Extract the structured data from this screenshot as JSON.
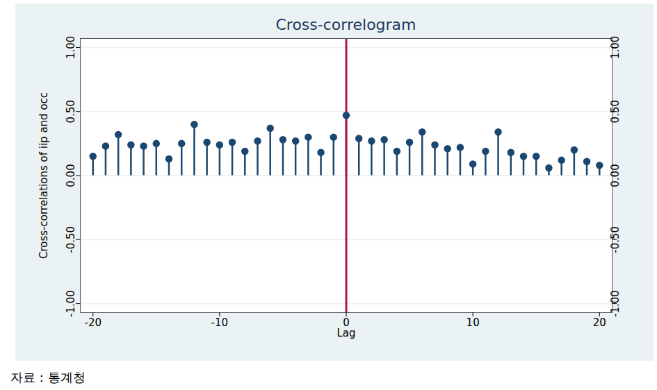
{
  "chart_data": {
    "type": "stem",
    "title": "Cross-correlogram",
    "x_label": "Lag",
    "y_label": "Cross-correlations of iip and occ",
    "source": "자료 : 통계청",
    "x": [
      -20,
      -19,
      -18,
      -17,
      -16,
      -15,
      -14,
      -13,
      -12,
      -11,
      -10,
      -9,
      -8,
      -7,
      -6,
      -5,
      -4,
      -3,
      -2,
      -1,
      0,
      1,
      2,
      3,
      4,
      5,
      6,
      7,
      8,
      9,
      10,
      11,
      12,
      13,
      14,
      15,
      16,
      17,
      18,
      19,
      20
    ],
    "values": [
      0.15,
      0.23,
      0.32,
      0.24,
      0.23,
      0.25,
      0.13,
      0.25,
      0.4,
      0.26,
      0.24,
      0.26,
      0.19,
      0.27,
      0.37,
      0.28,
      0.27,
      0.3,
      0.18,
      0.3,
      0.47,
      0.29,
      0.27,
      0.28,
      0.19,
      0.26,
      0.34,
      0.24,
      0.21,
      0.22,
      0.09,
      0.19,
      0.34,
      0.18,
      0.15,
      0.15,
      0.06,
      0.12,
      0.2,
      0.11,
      0.08
    ],
    "color": "#1a476f",
    "marker": "circle",
    "xlim": [
      -21,
      21
    ],
    "xticks": [
      -20,
      -10,
      0,
      10,
      20
    ],
    "ylim": [
      -1.07,
      1.07
    ],
    "yticks": [
      {
        "value": -1,
        "label": "-1.00"
      },
      {
        "value": -0.5,
        "label": "-0.50"
      },
      {
        "value": 0,
        "label": "0.00"
      },
      {
        "value": 0.5,
        "label": "0.50"
      },
      {
        "value": 1,
        "label": "1.00"
      }
    ],
    "grid": true,
    "vline": {
      "x": 0,
      "color": "#b5173a"
    }
  }
}
